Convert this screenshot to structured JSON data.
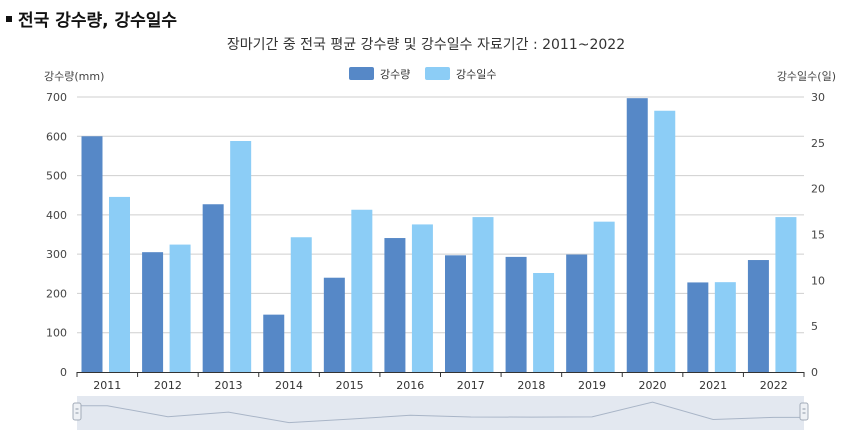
{
  "section_title": "전국 강수량, 강수일수",
  "colors": {
    "rain": "#5688c7",
    "days": "#8ccdf6",
    "grid": "#cfcfcf",
    "navigator_bg": "#e3e8f0",
    "navigator_line": "#a9b5c7"
  },
  "chart_data": {
    "type": "bar",
    "title": "장마기간 중 전국 평균 강수량 및 강수일수 자료기간 : 2011~2022",
    "categories": [
      "2011",
      "2012",
      "2013",
      "2014",
      "2015",
      "2016",
      "2017",
      "2018",
      "2019",
      "2020",
      "2021",
      "2022"
    ],
    "series": [
      {
        "name": "강수량",
        "axis": "left",
        "values": [
          600,
          305,
          427,
          146,
          240,
          341,
          297,
          293,
          299,
          697,
          228,
          285
        ]
      },
      {
        "name": "강수일수",
        "axis": "right",
        "values": [
          19.1,
          13.9,
          25.2,
          14.7,
          17.7,
          16.1,
          16.9,
          10.8,
          16.4,
          28.5,
          9.8,
          16.9
        ]
      }
    ],
    "ylabel": "강수량(mm)",
    "y2label": "강수일수(일)",
    "ylim": [
      0,
      700
    ],
    "yticks": [
      0,
      100,
      200,
      300,
      400,
      500,
      600,
      700
    ],
    "y2lim": [
      0,
      30
    ],
    "y2ticks": [
      0,
      5,
      10,
      15,
      20,
      25,
      30
    ],
    "grid": true,
    "legend": "top-center"
  }
}
